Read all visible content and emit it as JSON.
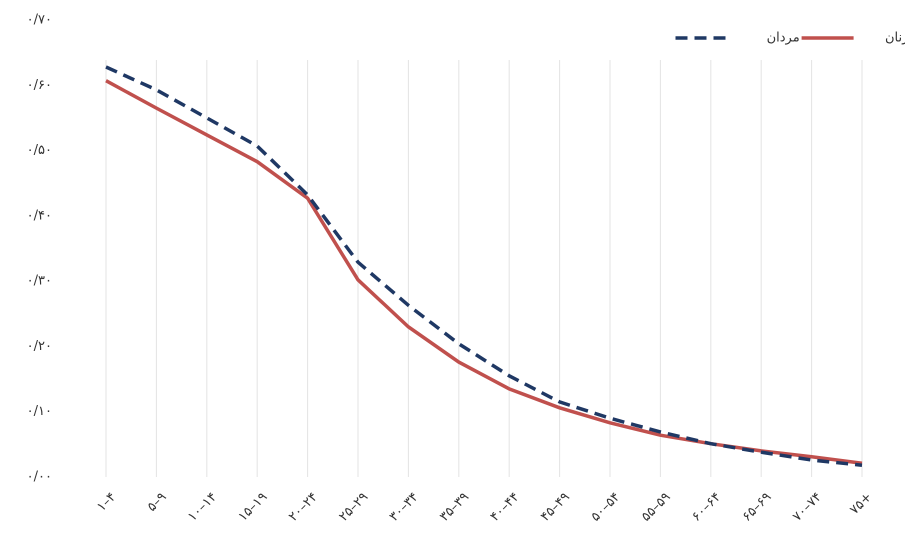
{
  "chart_data": {
    "type": "line",
    "categories": [
      "۱–۴",
      "۵–۹",
      "۱۰–۱۴",
      "۱۵–۱۹",
      "۲۰–۲۴",
      "۲۵–۲۹",
      "۳۰–۳۴",
      "۳۵–۳۹",
      "۴۰–۴۴",
      "۴۵–۴۹",
      "۵۰–۵۴",
      "۵۵–۵۹",
      "۶۰–۶۴",
      "۶۵–۶۹",
      "۷۰–۷۴",
      "۷۵+"
    ],
    "series": [
      {
        "name": "زنان",
        "color": "#c0504d",
        "dash": false,
        "values": [
          0.607,
          0.565,
          0.524,
          0.483,
          0.427,
          0.302,
          0.23,
          0.176,
          0.135,
          0.106,
          0.083,
          0.064,
          0.051,
          0.04,
          0.031,
          0.021
        ]
      },
      {
        "name": "مردان",
        "color": "#1f3864",
        "dash": true,
        "values": [
          0.628,
          0.593,
          0.55,
          0.507,
          0.432,
          0.329,
          0.263,
          0.204,
          0.155,
          0.115,
          0.09,
          0.069,
          0.051,
          0.038,
          0.026,
          0.018
        ]
      }
    ],
    "ylim": [
      0,
      0.7
    ],
    "yticks": [
      {
        "value": 0,
        "label": "۰/۰۰"
      },
      {
        "value": 0.1,
        "label": "۰/۱۰"
      },
      {
        "value": 0.2,
        "label": "۰/۲۰"
      },
      {
        "value": 0.3,
        "label": "۰/۳۰"
      },
      {
        "value": 0.4,
        "label": "۰/۴۰"
      },
      {
        "value": 0.5,
        "label": "۰/۵۰"
      },
      {
        "value": 0.6,
        "label": "۰/۶۰"
      },
      {
        "value": 0.7,
        "label": "۰/۷۰"
      }
    ],
    "grid": true,
    "legend": "top-right"
  }
}
